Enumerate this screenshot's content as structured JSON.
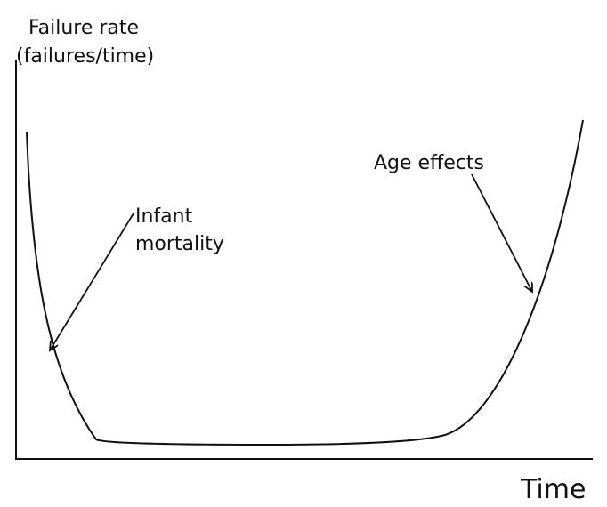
{
  "y_axis_label": [
    "Failure rate",
    "(failures/time)"
  ],
  "x_axis_label": "Time",
  "annotations": {
    "infant": [
      "Infant",
      "mortality"
    ],
    "age": "Age effects"
  }
}
